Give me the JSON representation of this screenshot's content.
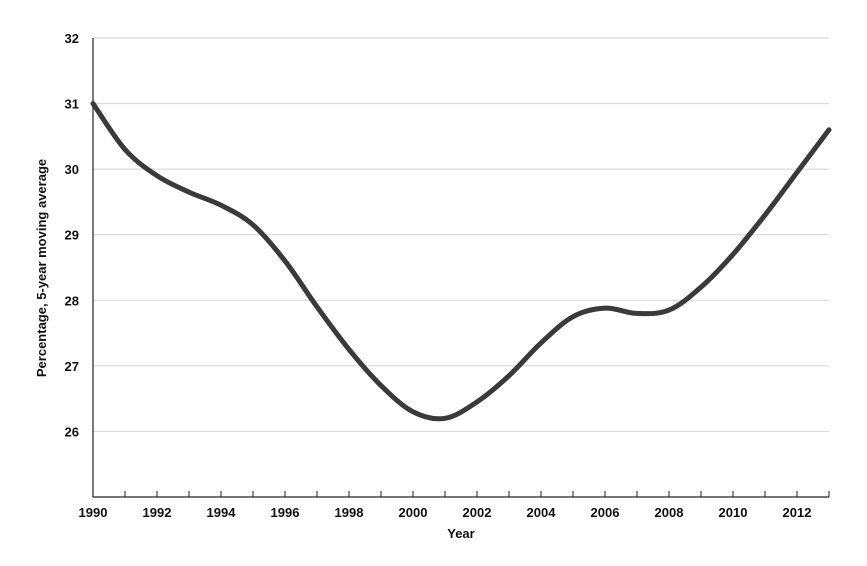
{
  "chart_data": {
    "type": "line",
    "xlabel": "Year",
    "ylabel": "Percentage, 5-year moving average",
    "xlim": [
      1990,
      2013
    ],
    "ylim": [
      25,
      32
    ],
    "x_ticks": [
      1990,
      1992,
      1994,
      1996,
      1998,
      2000,
      2002,
      2004,
      2006,
      2008,
      2010,
      2012
    ],
    "y_ticks": [
      26,
      27,
      28,
      29,
      30,
      31,
      32
    ],
    "grid": "horizontal",
    "line_color": "#3a3a3a",
    "series": [
      {
        "x": [
          1990,
          1991,
          1992,
          1993,
          1994,
          1995,
          1996,
          1997,
          1998,
          1999,
          2000,
          2001,
          2002,
          2003,
          2004,
          2005,
          2006,
          2007,
          2008,
          2009,
          2010,
          2011,
          2012,
          2013
        ],
        "values": [
          31.0,
          30.3,
          29.9,
          29.65,
          29.45,
          29.15,
          28.6,
          27.9,
          27.25,
          26.7,
          26.3,
          26.2,
          26.45,
          26.85,
          27.35,
          27.75,
          27.88,
          27.8,
          27.85,
          28.2,
          28.7,
          29.3,
          29.95,
          30.6
        ]
      }
    ]
  }
}
